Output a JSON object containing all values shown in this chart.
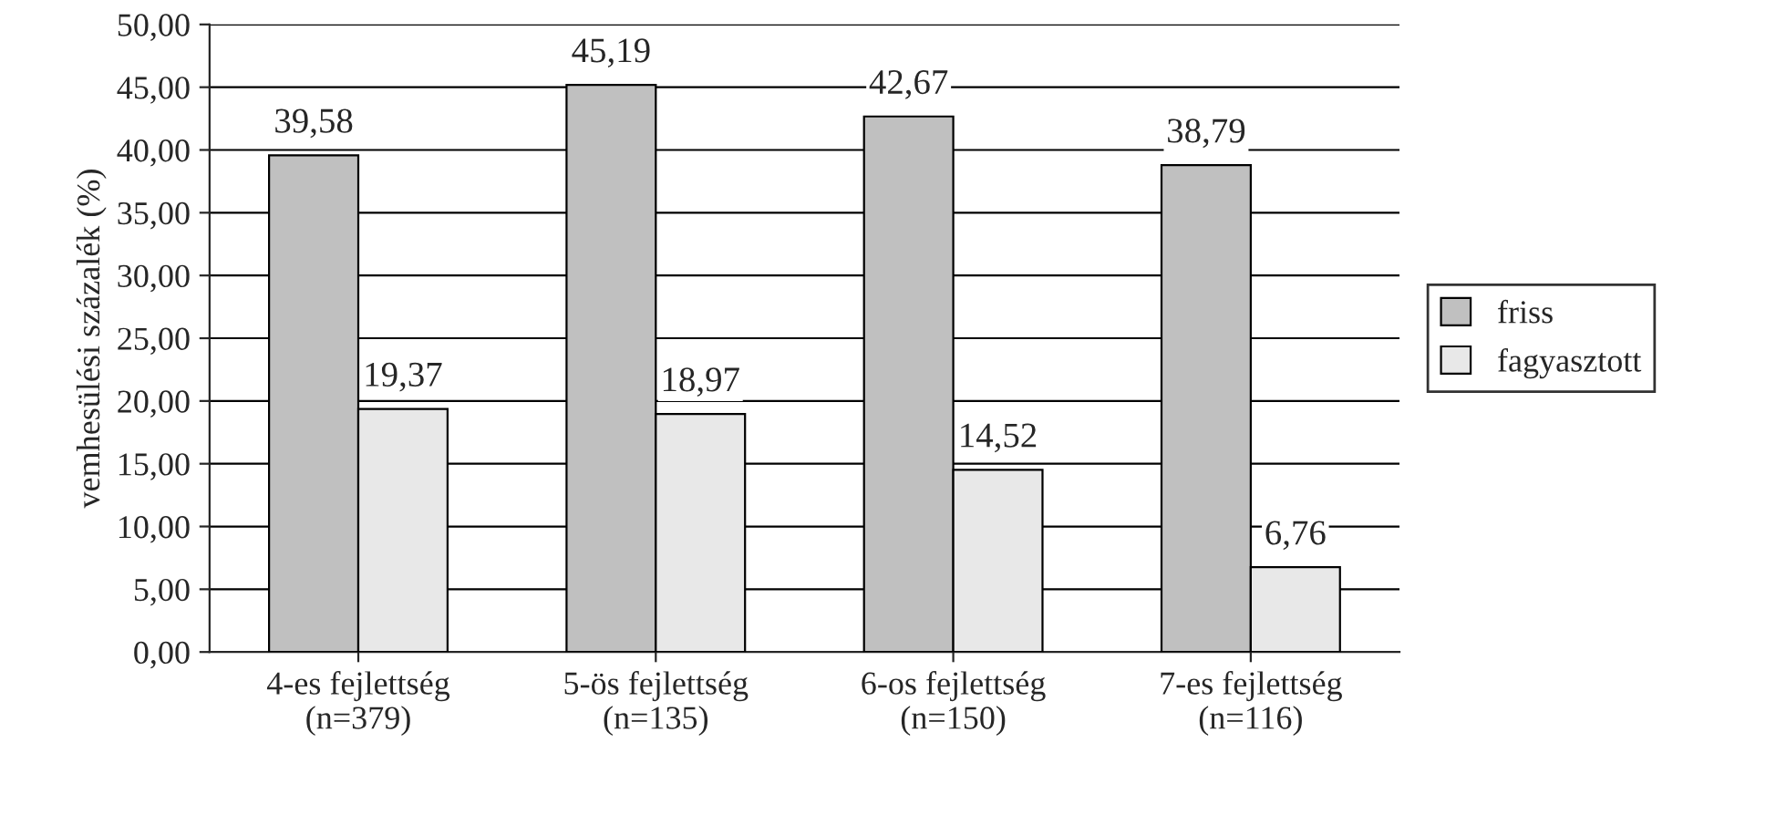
{
  "chart_data": {
    "type": "bar",
    "ylabel": "vemhesülési százalék (%)",
    "categories": [
      "4-es fejlettség\n(n=379)",
      "5-ös fejlettség\n(n=135)",
      "6-os fejlettség\n(n=150)",
      "7-es fejlettség\n(n=116)"
    ],
    "series": [
      {
        "name": "friss",
        "color": "#c0c0c0",
        "values": [
          39.58,
          45.19,
          42.67,
          38.79
        ],
        "value_labels": [
          "39,58",
          "45,19",
          "42,67",
          "38,79"
        ]
      },
      {
        "name": "fagyasztott",
        "color": "#e8e8e8",
        "values": [
          19.37,
          18.97,
          14.52,
          6.76
        ],
        "value_labels": [
          "19,37",
          "18,97",
          "14,52",
          "6,76"
        ]
      }
    ],
    "ylim": [
      0,
      50
    ],
    "yticks": [
      {
        "value": 0,
        "label": "0,00"
      },
      {
        "value": 5,
        "label": "5,00"
      },
      {
        "value": 10,
        "label": "10,00"
      },
      {
        "value": 15,
        "label": "15,00"
      },
      {
        "value": 20,
        "label": "20,00"
      },
      {
        "value": 25,
        "label": "25,00"
      },
      {
        "value": 30,
        "label": "30,00"
      },
      {
        "value": 35,
        "label": "35,00"
      },
      {
        "value": 40,
        "label": "40,00"
      },
      {
        "value": 45,
        "label": "45,00"
      },
      {
        "value": 50,
        "label": "50,00"
      }
    ],
    "grid": "y",
    "legend": "right"
  }
}
